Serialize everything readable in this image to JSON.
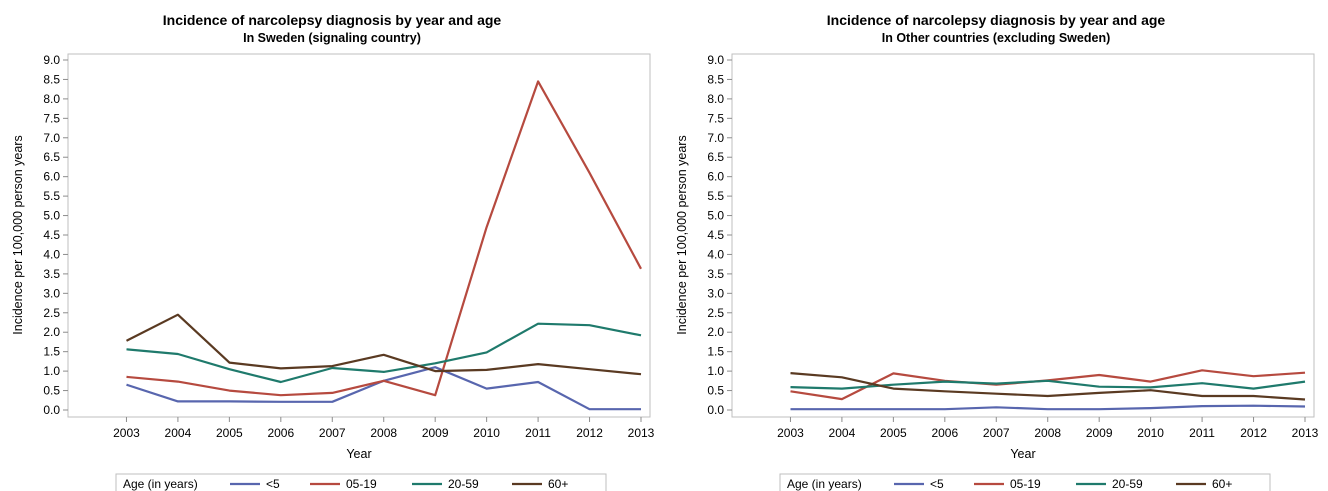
{
  "colors": {
    "<5": "#5866ae",
    "05-19": "#b64a3f",
    "20-59": "#1f7a6c",
    "60+": "#5a3a22",
    "axis": "#8c8c8c",
    "frame": "#bfbfbf",
    "legend_border": "#bfbfbf"
  },
  "chart_data": [
    {
      "type": "line",
      "title": "Incidence of narcolepsy diagnosis by year and age",
      "subtitle": "In Sweden (signaling country)",
      "xlabel": "Year",
      "ylabel": "Incidence per 100,000 person years",
      "x": [
        2003,
        2004,
        2005,
        2006,
        2007,
        2008,
        2009,
        2010,
        2011,
        2012,
        2013
      ],
      "ylim": [
        0,
        9
      ],
      "yticks": [
        "0.0",
        "0.5",
        "1.0",
        "1.5",
        "2.0",
        "2.5",
        "3.0",
        "3.5",
        "4.0",
        "4.5",
        "5.0",
        "5.5",
        "6.0",
        "6.5",
        "7.0",
        "7.5",
        "8.0",
        "8.5",
        "9.0"
      ],
      "grid": false,
      "legend_position": "bottom",
      "legend_title": "Age (in years)",
      "series": [
        {
          "name": "<5",
          "values": [
            0.65,
            0.22,
            0.22,
            0.21,
            0.21,
            0.75,
            1.1,
            0.55,
            0.72,
            0.02,
            0.02
          ]
        },
        {
          "name": "05-19",
          "values": [
            0.85,
            0.73,
            0.5,
            0.38,
            0.44,
            0.75,
            0.38,
            4.7,
            8.45,
            6.1,
            3.63
          ]
        },
        {
          "name": "20-59",
          "values": [
            1.56,
            1.44,
            1.05,
            0.72,
            1.08,
            0.98,
            1.2,
            1.48,
            2.22,
            2.18,
            1.92
          ]
        },
        {
          "name": "60+",
          "values": [
            1.78,
            2.45,
            1.22,
            1.07,
            1.13,
            1.42,
            1.0,
            1.03,
            1.18,
            1.05,
            0.92
          ]
        }
      ]
    },
    {
      "type": "line",
      "title": "Incidence of narcolepsy diagnosis by year and age",
      "subtitle": "In Other countries (excluding Sweden)",
      "xlabel": "Year",
      "ylabel": "Incidence per 100,000 person years",
      "x": [
        2003,
        2004,
        2005,
        2006,
        2007,
        2008,
        2009,
        2010,
        2011,
        2012,
        2013
      ],
      "ylim": [
        0,
        9
      ],
      "yticks": [
        "0.0",
        "0.5",
        "1.0",
        "1.5",
        "2.0",
        "2.5",
        "3.0",
        "3.5",
        "4.0",
        "4.5",
        "5.0",
        "5.5",
        "6.0",
        "6.5",
        "7.0",
        "7.5",
        "8.0",
        "8.5",
        "9.0"
      ],
      "grid": false,
      "legend_position": "bottom",
      "legend_title": "Age (in years)",
      "series": [
        {
          "name": "<5",
          "values": [
            0.02,
            0.02,
            0.02,
            0.02,
            0.07,
            0.02,
            0.02,
            0.05,
            0.1,
            0.11,
            0.09
          ]
        },
        {
          "name": "05-19",
          "values": [
            0.48,
            0.28,
            0.94,
            0.75,
            0.65,
            0.76,
            0.9,
            0.73,
            1.02,
            0.87,
            0.96
          ]
        },
        {
          "name": "20-59",
          "values": [
            0.59,
            0.55,
            0.65,
            0.73,
            0.68,
            0.75,
            0.6,
            0.58,
            0.69,
            0.55,
            0.73
          ]
        },
        {
          "name": "60+",
          "values": [
            0.95,
            0.84,
            0.55,
            0.48,
            0.42,
            0.36,
            0.44,
            0.51,
            0.36,
            0.36,
            0.27
          ]
        }
      ]
    }
  ]
}
